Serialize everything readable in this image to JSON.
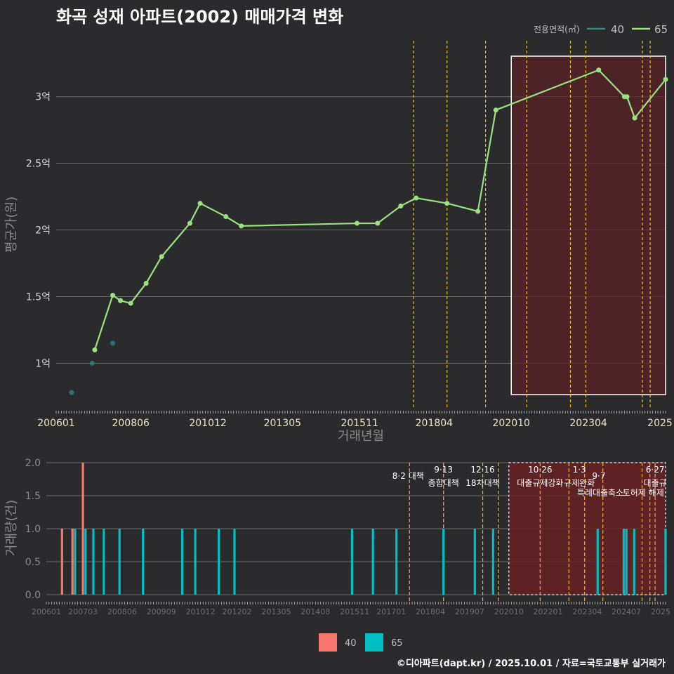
{
  "title": "화곡 성재 아파트(2002) 매매가격 변화",
  "footer": "©디아파트(dapt.kr) / 2025.10.01 / 자료=국토교통부 실거래가",
  "colors": {
    "bg": "#2b2b2d",
    "grid": "#6a6a6a",
    "series40": "#2e8b86",
    "series65": "#98e27f",
    "bar40": "#f8766d",
    "bar65": "#00bfc4",
    "vline": "#e6c619",
    "vline_bottom": "#e8a317",
    "highlight": "#5a2226"
  },
  "chart_data": [
    {
      "type": "line",
      "ylabel": "평균가(원)",
      "xlabel": "거래년월",
      "legend_title": "전용면적(㎡)",
      "legend_position": "top-right",
      "x_ticks": [
        "200601",
        "200806",
        "201012",
        "201305",
        "201511",
        "201804",
        "202010",
        "202304",
        "2025"
      ],
      "y_ticks": [
        {
          "value": 1.0,
          "label": "1억"
        },
        {
          "value": 1.5,
          "label": "1.5억"
        },
        {
          "value": 2.0,
          "label": "2억"
        },
        {
          "value": 2.5,
          "label": "2.5억"
        },
        {
          "value": 3.0,
          "label": "3억"
        }
      ],
      "ylim": [
        0.67,
        3.42
      ],
      "xlim": [
        "2006-01",
        "2025-10"
      ],
      "series": [
        {
          "name": "40",
          "points": [
            {
              "x": "2006-07",
              "y": 0.78
            },
            {
              "x": "2007-03",
              "y": 1.0
            },
            {
              "x": "2007-11",
              "y": 1.15
            }
          ]
        },
        {
          "name": "65",
          "points": [
            {
              "x": "2007-04",
              "y": 1.1
            },
            {
              "x": "2007-11",
              "y": 1.51
            },
            {
              "x": "2008-02",
              "y": 1.47
            },
            {
              "x": "2008-06",
              "y": 1.45
            },
            {
              "x": "2008-12",
              "y": 1.6
            },
            {
              "x": "2009-06",
              "y": 1.8
            },
            {
              "x": "2010-05",
              "y": 2.05
            },
            {
              "x": "2010-09",
              "y": 2.2
            },
            {
              "x": "2011-07",
              "y": 2.1
            },
            {
              "x": "2012-01",
              "y": 2.03
            },
            {
              "x": "2015-10",
              "y": 2.05
            },
            {
              "x": "2016-06",
              "y": 2.05
            },
            {
              "x": "2017-03",
              "y": 2.18
            },
            {
              "x": "2017-09",
              "y": 2.24
            },
            {
              "x": "2018-09",
              "y": 2.2
            },
            {
              "x": "2019-09",
              "y": 2.14
            },
            {
              "x": "2020-04",
              "y": 2.9
            },
            {
              "x": "2023-08",
              "y": 3.2
            },
            {
              "x": "2024-06",
              "y": 3.0
            },
            {
              "x": "2024-07",
              "y": 3.0
            },
            {
              "x": "2024-10",
              "y": 2.84
            },
            {
              "x": "2025-10",
              "y": 3.13
            }
          ]
        }
      ],
      "policy_lines": [
        "2017-08",
        "2018-09",
        "2019-12",
        "2021-04",
        "2022-09",
        "2023-03",
        "2025-01",
        "2025-04"
      ],
      "highlight_range": [
        "2020-10",
        "2025-10"
      ]
    },
    {
      "type": "bar",
      "ylabel": "거래량(건)",
      "legend_position": "bottom",
      "x_ticks": [
        "200601",
        "200703",
        "200806",
        "200909",
        "201012",
        "201202",
        "201305",
        "201408",
        "201511",
        "201701",
        "201804",
        "201907",
        "202010",
        "202201",
        "202304",
        "202407",
        "2025"
      ],
      "y_ticks": [
        {
          "value": 0.0,
          "label": "0.0"
        },
        {
          "value": 0.5,
          "label": "0.5"
        },
        {
          "value": 1.0,
          "label": "1.0"
        },
        {
          "value": 1.5,
          "label": "1.5"
        },
        {
          "value": 2.0,
          "label": "2.0"
        }
      ],
      "ylim": [
        0,
        2.0
      ],
      "series": [
        {
          "name": "40",
          "bars": [
            {
              "x": "2006-07",
              "y": 1
            },
            {
              "x": "2006-11",
              "y": 1
            },
            {
              "x": "2007-03",
              "y": 2
            }
          ]
        },
        {
          "name": "65",
          "bars": [
            {
              "x": "2006-12",
              "y": 1
            },
            {
              "x": "2007-04",
              "y": 1
            },
            {
              "x": "2007-07",
              "y": 1
            },
            {
              "x": "2007-11",
              "y": 1
            },
            {
              "x": "2008-05",
              "y": 1
            },
            {
              "x": "2009-02",
              "y": 1
            },
            {
              "x": "2010-05",
              "y": 1
            },
            {
              "x": "2010-10",
              "y": 1
            },
            {
              "x": "2011-07",
              "y": 1
            },
            {
              "x": "2012-01",
              "y": 1
            },
            {
              "x": "2015-10",
              "y": 1
            },
            {
              "x": "2016-06",
              "y": 1
            },
            {
              "x": "2017-03",
              "y": 1
            },
            {
              "x": "2018-09",
              "y": 1
            },
            {
              "x": "2019-09",
              "y": 1
            },
            {
              "x": "2020-04",
              "y": 1
            },
            {
              "x": "2023-08",
              "y": 1
            },
            {
              "x": "2024-06",
              "y": 1
            },
            {
              "x": "2024-07",
              "y": 1
            },
            {
              "x": "2024-10",
              "y": 1
            },
            {
              "x": "2025-10",
              "y": 1
            }
          ]
        }
      ],
      "policy_lines": [
        "2017-08",
        "2018-09",
        "2019-12",
        "2020-06",
        "2021-10",
        "2022-09",
        "2023-03",
        "2023-10",
        "2025-01",
        "2025-04",
        "2025-06"
      ],
      "highlight_range": [
        "2020-10",
        "2025-10"
      ],
      "annotations": [
        {
          "date": "8·2 대책",
          "x": "2017-08",
          "row": 2
        },
        {
          "date": "9·13",
          "label": "종합대책",
          "x": "2018-09"
        },
        {
          "date": "12·16",
          "label": "18차대책",
          "x": "2019-12"
        },
        {
          "date": "10·26",
          "label": "대출규제강화",
          "x": "2021-10"
        },
        {
          "date": "1·3",
          "label": "규제완화",
          "x": "2023-01"
        },
        {
          "date": "9·7",
          "label": "특례대출축소",
          "x": "2023-09",
          "row": 2
        },
        {
          "label": "토허제 해제",
          "x": "2025-02",
          "row": 2
        },
        {
          "date": "6·27",
          "label": "대출규",
          "x": "2025-06"
        }
      ]
    }
  ]
}
